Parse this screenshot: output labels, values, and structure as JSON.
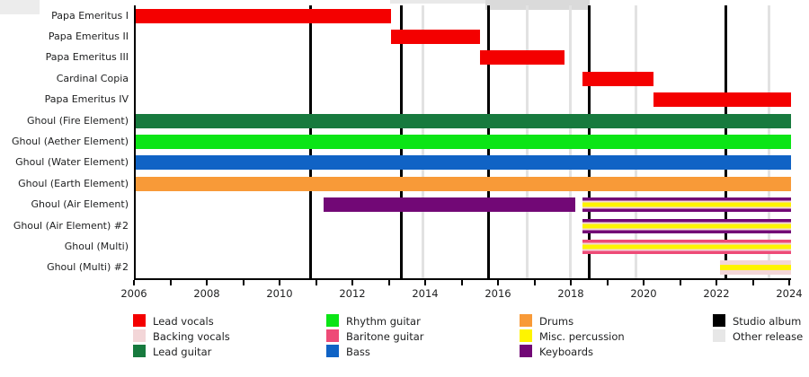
{
  "chart_data": {
    "type": "bar",
    "variant": "horizontal-gantt-timeline",
    "title": "",
    "xlabel": "",
    "ylabel": "",
    "x_axis": {
      "min": 2006,
      "max": 2024,
      "minor_tick_every_years": 1,
      "tick_labels": [
        "2006",
        "2008",
        "2010",
        "2012",
        "2014",
        "2016",
        "2018",
        "2020",
        "2022",
        "2024"
      ]
    },
    "role_colors": {
      "lead_vocals": "#f40000",
      "backing_vocals": "#f3d6d8",
      "lead_guitar": "#177a3e",
      "rhythm_guitar": "#0be516",
      "baritone_guitar": "#ee4b77",
      "bass": "#1063c5",
      "drums": "#f89a38",
      "misc_percussion": "#fef400",
      "keyboards": "#720876",
      "studio_album": "#000000",
      "other_release": "#e7e7e7"
    },
    "rows": [
      {
        "label": "Papa Emeritus I",
        "segments": [
          {
            "start": 2006.0,
            "end": 2013.0,
            "roles": [
              "lead_vocals"
            ]
          }
        ]
      },
      {
        "label": "Papa Emeritus II",
        "segments": [
          {
            "start": 2013.0,
            "end": 2015.45,
            "roles": [
              "lead_vocals"
            ]
          }
        ]
      },
      {
        "label": "Papa Emeritus III",
        "segments": [
          {
            "start": 2015.45,
            "end": 2017.78,
            "roles": [
              "lead_vocals"
            ]
          }
        ]
      },
      {
        "label": "Cardinal Copia",
        "segments": [
          {
            "start": 2018.26,
            "end": 2020.22,
            "roles": [
              "lead_vocals"
            ]
          }
        ]
      },
      {
        "label": "Papa Emeritus IV",
        "segments": [
          {
            "start": 2020.22,
            "end": 2024.0,
            "roles": [
              "lead_vocals"
            ]
          }
        ]
      },
      {
        "label": "Ghoul (Fire Element)",
        "segments": [
          {
            "start": 2006.0,
            "end": 2024.0,
            "roles": [
              "lead_guitar"
            ]
          }
        ]
      },
      {
        "label": "Ghoul (Aether Element)",
        "segments": [
          {
            "start": 2006.0,
            "end": 2024.0,
            "roles": [
              "rhythm_guitar"
            ]
          }
        ]
      },
      {
        "label": "Ghoul (Water Element)",
        "segments": [
          {
            "start": 2006.0,
            "end": 2024.0,
            "roles": [
              "bass"
            ]
          }
        ]
      },
      {
        "label": "Ghoul (Earth Element)",
        "segments": [
          {
            "start": 2006.0,
            "end": 2024.0,
            "roles": [
              "drums"
            ]
          }
        ]
      },
      {
        "label": "Ghoul (Air Element)",
        "segments": [
          {
            "start": 2011.16,
            "end": 2018.07,
            "roles": [
              "keyboards"
            ]
          },
          {
            "start": 2018.26,
            "end": 2024.0,
            "roles": [
              "keyboards",
              "backing_vocals",
              "misc_percussion"
            ]
          }
        ]
      },
      {
        "label": "Ghoul (Air Element) #2",
        "segments": [
          {
            "start": 2018.26,
            "end": 2024.0,
            "roles": [
              "keyboards",
              "backing_vocals",
              "misc_percussion"
            ]
          }
        ]
      },
      {
        "label": "Ghoul (Multi)",
        "segments": [
          {
            "start": 2018.26,
            "end": 2024.0,
            "roles": [
              "baritone_guitar",
              "backing_vocals",
              "misc_percussion"
            ]
          }
        ]
      },
      {
        "label": "Ghoul (Multi) #2",
        "segments": [
          {
            "start": 2022.05,
            "end": 2024.0,
            "roles": [
              "backing_vocals",
              "misc_percussion"
            ]
          }
        ]
      }
    ],
    "events": {
      "studio_albums": [
        2010.8,
        2013.3,
        2015.7,
        2018.45,
        2022.2
      ],
      "other_releases": [
        2013.9,
        2016.75,
        2017.95,
        2019.75,
        2023.4
      ]
    },
    "legend": {
      "position": "bottom",
      "columns": [
        [
          {
            "label": "Lead vocals",
            "role": "lead_vocals"
          },
          {
            "label": "Backing vocals",
            "role": "backing_vocals"
          },
          {
            "label": "Lead guitar",
            "role": "lead_guitar"
          }
        ],
        [
          {
            "label": "Rhythm guitar",
            "role": "rhythm_guitar"
          },
          {
            "label": "Baritone guitar",
            "role": "baritone_guitar"
          },
          {
            "label": "Bass",
            "role": "bass"
          }
        ],
        [
          {
            "label": "Drums",
            "role": "drums"
          },
          {
            "label": "Misc. percussion",
            "role": "misc_percussion"
          },
          {
            "label": "Keyboards",
            "role": "keyboards"
          }
        ],
        [
          {
            "label": "Studio album",
            "role": "studio_album"
          },
          {
            "label": "Other release",
            "role": "other_release"
          }
        ]
      ]
    }
  }
}
